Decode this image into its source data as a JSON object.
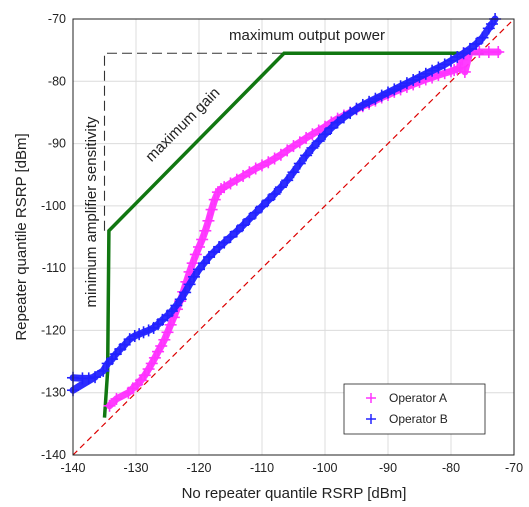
{
  "chart_data": {
    "type": "scatter",
    "xlabel": "No repeater quantile RSRP [dBm]",
    "ylabel": "Repeater quantile RSRP [dBm]",
    "xlim": [
      -140,
      -70
    ],
    "ylim": [
      -140,
      -70
    ],
    "xticks": [
      -140,
      -130,
      -120,
      -110,
      -100,
      -90,
      -80,
      -70
    ],
    "yticks": [
      -140,
      -130,
      -120,
      -110,
      -100,
      -90,
      -80,
      -70
    ],
    "grid": true,
    "legend_position": "bottom-right",
    "series": [
      {
        "name": "Operator A",
        "color": "#ff33ff",
        "marker": "plus",
        "x": [
          -134.2,
          -133.1,
          -131.2,
          -130.5,
          -129.8,
          -129.2,
          -128.6,
          -128.0,
          -127.5,
          -127.0,
          -126.5,
          -126.0,
          -125.5,
          -125.0,
          -124.5,
          -124.0,
          -123.5,
          -123.0,
          -122.5,
          -122.0,
          -121.5,
          -121.0,
          -120.5,
          -120.0,
          -119.5,
          -119.0,
          -118.5,
          -118.0,
          -117.5,
          -117.0,
          -116.5,
          -116.0,
          -115.0,
          -114.0,
          -113.0,
          -112.0,
          -111.0,
          -110.0,
          -109.0,
          -108.0,
          -107.0,
          -106.0,
          -105.0,
          -104.0,
          -103.0,
          -102.0,
          -101.0,
          -100.0,
          -99.0,
          -98.0,
          -97.0,
          -96.0,
          -95.0,
          -94.0,
          -93.0,
          -92.0,
          -91.0,
          -90.0,
          -89.0,
          -88.0,
          -87.0,
          -86.0,
          -85.0,
          -84.0,
          -83.0,
          -82.0,
          -81.0,
          -80.0,
          -79.5,
          -79.0,
          -78.5,
          -78.2,
          -78.0,
          -77.8,
          -77.0,
          -75.5,
          -74.0,
          -72.5
        ],
        "y": [
          -132.1,
          -131.0,
          -130.0,
          -129.3,
          -128.7,
          -128.0,
          -127.2,
          -126.2,
          -125.3,
          -124.4,
          -123.4,
          -122.5,
          -121.5,
          -120.3,
          -119.1,
          -117.9,
          -116.6,
          -115.3,
          -113.8,
          -112.2,
          -110.6,
          -109.2,
          -107.8,
          -106.6,
          -105.4,
          -104.0,
          -102.4,
          -100.6,
          -99.0,
          -97.8,
          -97.3,
          -97.0,
          -96.4,
          -95.8,
          -95.2,
          -94.6,
          -94.0,
          -93.5,
          -93.0,
          -92.4,
          -91.8,
          -91.1,
          -90.4,
          -89.8,
          -89.1,
          -88.5,
          -87.9,
          -87.3,
          -86.6,
          -86.0,
          -85.5,
          -85.0,
          -84.5,
          -84.0,
          -83.6,
          -83.1,
          -82.6,
          -82.2,
          -81.7,
          -81.3,
          -80.9,
          -80.5,
          -80.1,
          -79.7,
          -79.4,
          -79.0,
          -78.7,
          -78.4,
          -78.2,
          -78.0,
          -77.8,
          -76.5,
          -75.5,
          -78.5,
          -75.3,
          -75.3,
          -75.3,
          -75.3
        ]
      },
      {
        "name": "Operator B",
        "color": "#2222ff",
        "marker": "plus",
        "x": [
          -140.0,
          -138.5,
          -137.5,
          -136.5,
          -140.0,
          -135.2,
          -134.5,
          -133.8,
          -133.2,
          -132.5,
          -131.8,
          -131.0,
          -130.2,
          -129.5,
          -128.8,
          -128.0,
          -127.2,
          -126.5,
          -125.8,
          -125.0,
          -124.3,
          -123.6,
          -122.9,
          -122.2,
          -121.5,
          -120.8,
          -120.0,
          -119.2,
          -118.4,
          -117.6,
          -116.8,
          -116.0,
          -115.0,
          -114.0,
          -113.0,
          -112.0,
          -111.0,
          -110.0,
          -109.0,
          -108.0,
          -107.0,
          -106.0,
          -105.0,
          -104.0,
          -103.0,
          -102.0,
          -101.0,
          -100.0,
          -99.0,
          -98.0,
          -97.0,
          -96.0,
          -95.0,
          -94.0,
          -93.0,
          -92.0,
          -91.0,
          -90.0,
          -89.0,
          -88.0,
          -87.0,
          -86.0,
          -85.0,
          -84.0,
          -83.0,
          -82.0,
          -81.0,
          -80.0,
          -79.0,
          -78.0,
          -77.0,
          -76.0,
          -75.0,
          -74.0,
          -73.5,
          -73.0
        ],
        "y": [
          -127.6,
          -127.7,
          -127.7,
          -127.5,
          -129.6,
          -126.5,
          -125.3,
          -124.6,
          -123.8,
          -123.0,
          -122.3,
          -121.4,
          -120.9,
          -120.6,
          -120.3,
          -120.0,
          -119.6,
          -119.0,
          -118.3,
          -117.6,
          -116.9,
          -116.0,
          -115.0,
          -113.9,
          -112.6,
          -111.4,
          -110.2,
          -109.2,
          -108.2,
          -107.4,
          -106.6,
          -105.9,
          -105.0,
          -104.1,
          -103.1,
          -102.1,
          -101.1,
          -100.1,
          -99.1,
          -98.1,
          -97.0,
          -95.9,
          -94.6,
          -93.2,
          -91.9,
          -90.7,
          -89.6,
          -88.5,
          -87.5,
          -86.6,
          -85.8,
          -85.1,
          -84.4,
          -83.8,
          -83.3,
          -82.8,
          -82.3,
          -81.8,
          -81.3,
          -80.8,
          -80.3,
          -79.8,
          -79.3,
          -78.8,
          -78.3,
          -77.8,
          -77.3,
          -76.7,
          -76.1,
          -75.5,
          -74.8,
          -74.0,
          -73.0,
          -71.5,
          -70.8,
          -70.0
        ]
      }
    ],
    "reference_lines": [
      {
        "kind": "dashed",
        "color": "#dd0000",
        "x": [
          -140,
          -70
        ],
        "y": [
          -140,
          -70
        ]
      },
      {
        "kind": "dashed",
        "color": "#333333",
        "x": [
          -135,
          -135,
          -107,
          -75.5
        ],
        "y": [
          -104,
          -75.5,
          -75.5,
          -75.5
        ]
      },
      {
        "kind": "solid",
        "color": "#117711",
        "x": [
          -135,
          -134.5,
          -134.3,
          -106.5,
          -74.8
        ],
        "y": [
          -134,
          -126.5,
          -104,
          -75.5,
          -75.5
        ]
      }
    ],
    "annotations": {
      "max_output": "maximum output power",
      "max_gain": "maximum gain",
      "min_sensitivity": "minimum amplifier sensitivity"
    }
  }
}
